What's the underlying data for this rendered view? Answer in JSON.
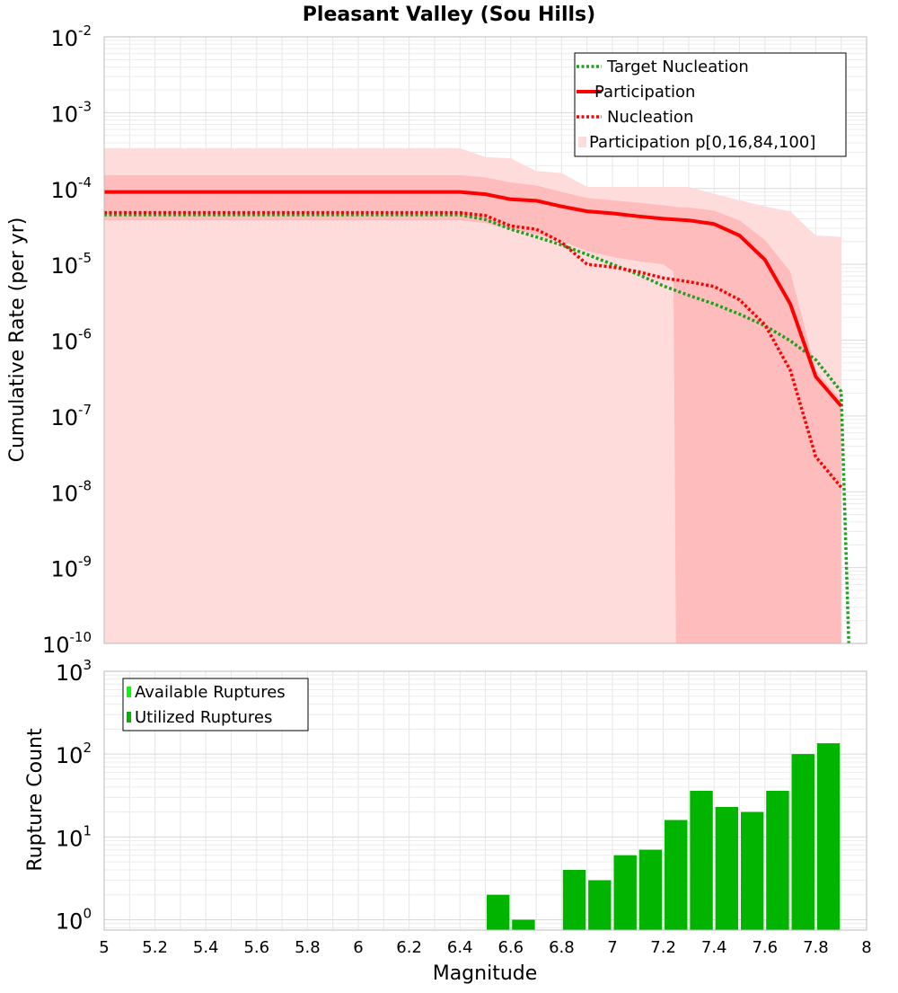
{
  "chart_data": [
    {
      "type": "line",
      "title": "Pleasant Valley (Sou Hills)",
      "xlabel": "",
      "ylabel": "Cumulative Rate (per yr)",
      "xlim": [
        5,
        8
      ],
      "ylim": [
        1e-10,
        0.01
      ],
      "yscale": "log",
      "grid": true,
      "legend_position": "top-right",
      "y_tick_exponents": [
        "-10",
        "-9",
        "-8",
        "-7",
        "-6",
        "-5",
        "-4",
        "-3",
        "-2"
      ],
      "y_tick_base": "10",
      "legend": [
        "Target Nucleation",
        "Participation",
        "Nucleation",
        "Participation p[0,16,84,100]"
      ],
      "series": [
        {
          "name": "Target Nucleation",
          "style": "dotted",
          "color": "#22a022",
          "x": [
            5.0,
            6.4,
            6.5,
            6.6,
            6.7,
            6.8,
            6.9,
            7.0,
            7.1,
            7.2,
            7.3,
            7.4,
            7.5,
            7.6,
            7.7,
            7.8,
            7.9,
            7.93
          ],
          "y": [
            4.5e-05,
            4.5e-05,
            3.9e-05,
            2.9e-05,
            2.3e-05,
            1.8e-05,
            1.35e-05,
            1e-05,
            7.4e-06,
            5.2e-06,
            3.9e-06,
            3e-06,
            2.2e-06,
            1.55e-06,
            9.8e-07,
            5.5e-07,
            2.1e-07,
            1e-10
          ]
        },
        {
          "name": "Participation",
          "style": "solid",
          "color": "#ff0000",
          "x": [
            5.0,
            6.4,
            6.5,
            6.6,
            6.7,
            6.8,
            6.9,
            7.0,
            7.1,
            7.2,
            7.3,
            7.4,
            7.5,
            7.6,
            7.7,
            7.8,
            7.9
          ],
          "y": [
            9e-05,
            9e-05,
            8.4e-05,
            7.2e-05,
            6.9e-05,
            5.8e-05,
            5e-05,
            4.7e-05,
            4.3e-05,
            4e-05,
            3.8e-05,
            3.4e-05,
            2.4e-05,
            1.15e-05,
            3e-06,
            3.3e-07,
            1.35e-07
          ]
        },
        {
          "name": "Nucleation",
          "style": "dotted",
          "color": "#ff0000",
          "x": [
            5.0,
            6.4,
            6.5,
            6.6,
            6.7,
            6.8,
            6.9,
            7.0,
            7.1,
            7.2,
            7.3,
            7.4,
            7.5,
            7.6,
            7.7,
            7.8,
            7.9
          ],
          "y": [
            4.8e-05,
            4.8e-05,
            4.4e-05,
            3.2e-05,
            2.9e-05,
            1.95e-05,
            1e-05,
            9.2e-06,
            8e-06,
            6.6e-06,
            5.9e-06,
            5.1e-06,
            3.4e-06,
            1.6e-06,
            4e-07,
            2.9e-08,
            1.15e-08
          ]
        }
      ],
      "bands": [
        {
          "name": "Participation p[0,16,84,100]",
          "range": "p0-p100",
          "color": "#ffdcdc",
          "x": [
            5.0,
            6.4,
            6.5,
            6.6,
            6.7,
            6.8,
            6.9,
            7.0,
            7.1,
            7.2,
            7.3,
            7.4,
            7.5,
            7.6,
            7.7,
            7.8,
            7.9
          ],
          "upper": [
            0.00034,
            0.00034,
            0.00026,
            0.00025,
            0.00017,
            0.00016,
            0.000105,
            0.000105,
            0.000105,
            0.000105,
            0.000105,
            8.5e-05,
            7e-05,
            5.8e-05,
            5e-05,
            2.4e-05,
            2.3e-05
          ],
          "lower": [
            1e-10,
            1e-10,
            1e-10,
            1e-10,
            1e-10,
            1e-10,
            1e-10,
            1e-10,
            1e-10,
            1e-10,
            1e-10,
            1e-10,
            1e-10,
            1e-10,
            1e-10,
            1e-10,
            1e-10
          ]
        },
        {
          "name": "Participation p[0,16,84,100]",
          "range": "p16-p84",
          "color": "#ffbcbc",
          "x": [
            5.0,
            6.4,
            6.5,
            6.6,
            6.7,
            6.8,
            6.9,
            7.0,
            7.1,
            7.2,
            7.24,
            7.25,
            7.3,
            7.4,
            7.5,
            7.6,
            7.7,
            7.8,
            7.9
          ],
          "upper": [
            0.00015,
            0.00015,
            0.00014,
            0.00012,
            0.00011,
            9e-05,
            7.5e-05,
            7e-05,
            6.5e-05,
            6e-05,
            5.8e-05,
            5.7e-05,
            5.6e-05,
            5.1e-05,
            3.8e-05,
            2.1e-05,
            8e-06,
            4e-07,
            1.6e-07
          ],
          "lower": [
            3.8e-05,
            3.8e-05,
            3.5e-05,
            2.9e-05,
            2.5e-05,
            2e-05,
            1.5e-05,
            1.25e-05,
            1.1e-05,
            1e-05,
            8e-06,
            1e-10,
            1e-10,
            1e-10,
            1e-10,
            1e-10,
            1e-10,
            1e-10,
            1e-10
          ]
        }
      ]
    },
    {
      "type": "bar",
      "xlabel": "Magnitude",
      "ylabel": "Rupture Count",
      "xlim": [
        5,
        8
      ],
      "ylim": [
        0.75,
        1000
      ],
      "yscale": "log",
      "grid": true,
      "legend_position": "top-left",
      "x_ticks": [
        "5",
        "5.2",
        "5.4",
        "5.6",
        "5.8",
        "6",
        "6.2",
        "6.4",
        "6.6",
        "6.8",
        "7",
        "7.2",
        "7.4",
        "7.6",
        "7.8",
        "8"
      ],
      "y_tick_exponents": [
        "0",
        "1",
        "2",
        "3"
      ],
      "y_tick_base": "10",
      "legend": [
        "Available Ruptures",
        "Utilized Ruptures"
      ],
      "series": [
        {
          "name": "Available Ruptures",
          "color": "#00ff00",
          "x": [
            6.55,
            6.65,
            6.85,
            6.95,
            7.05,
            7.15,
            7.25,
            7.35,
            7.45,
            7.55,
            7.65,
            7.75,
            7.85
          ],
          "values": [
            2,
            1,
            4,
            3,
            6,
            7,
            16,
            36,
            23,
            20,
            36,
            100,
            135
          ]
        },
        {
          "name": "Utilized Ruptures",
          "color": "#00b400",
          "x": [
            6.55,
            6.65,
            6.85,
            6.95,
            7.05,
            7.15,
            7.25,
            7.35,
            7.45,
            7.55,
            7.65,
            7.75,
            7.85
          ],
          "values": [
            2,
            1,
            4,
            3,
            6,
            7,
            16,
            36,
            23,
            20,
            36,
            100,
            135
          ]
        }
      ]
    }
  ]
}
